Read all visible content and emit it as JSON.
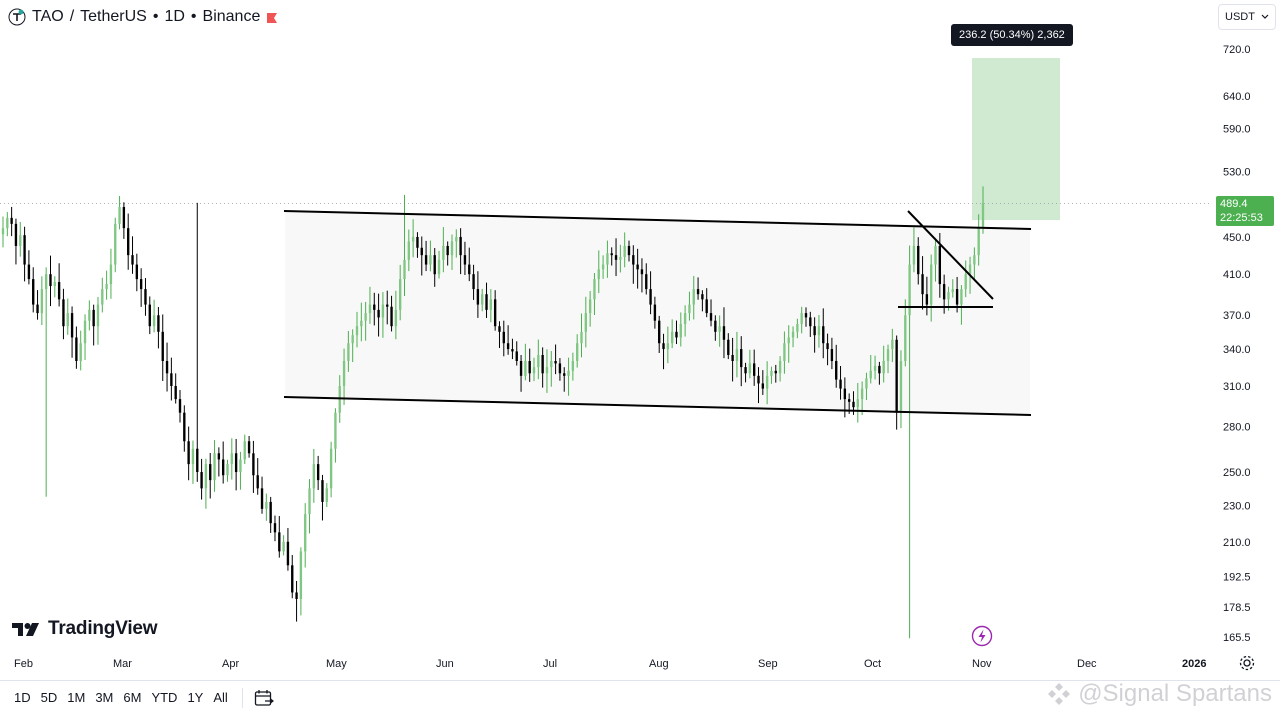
{
  "header": {
    "symbol": "TAO",
    "separator": "/",
    "pair": "TetherUS",
    "interval": "1D",
    "exchange": "Binance",
    "dot": "•"
  },
  "currency": {
    "value": "USDT"
  },
  "price_label": {
    "price": "489.4",
    "countdown": "22:25:53",
    "color": "#4caf50"
  },
  "measure_label": {
    "text": "236.2 (50.34%) 2,362"
  },
  "logo": {
    "text": "TradingView"
  },
  "watermark": {
    "text": "@Signal Spartans"
  },
  "time_ranges": [
    "1D",
    "5D",
    "1M",
    "3M",
    "6M",
    "YTD",
    "1Y",
    "All"
  ],
  "chart_data": {
    "type": "candlestick",
    "scale": "log",
    "y_ticks": [
      165.5,
      178.5,
      192.5,
      210.0,
      230.0,
      250.0,
      280.0,
      310.0,
      340.0,
      370.0,
      410.0,
      450.0,
      530.0,
      590.0,
      640.0,
      720.0
    ],
    "x_ticks": [
      "Feb",
      "Mar",
      "Apr",
      "May",
      "Jun",
      "Jul",
      "Aug",
      "Sep",
      "Oct",
      "Nov",
      "Dec",
      "2026"
    ],
    "colors": {
      "up": "#26a69a",
      "up_light": "#81c784",
      "down": "#000000",
      "target_box": "#c8e6c9"
    },
    "closes": [
      460,
      472,
      465,
      440,
      452,
      420,
      405,
      380,
      372,
      395,
      410,
      398,
      402,
      385,
      360,
      372,
      350,
      330,
      345,
      365,
      375,
      360,
      380,
      395,
      400,
      420,
      465,
      485,
      460,
      430,
      420,
      405,
      395,
      380,
      360,
      370,
      355,
      330,
      320,
      310,
      300,
      290,
      270,
      255,
      265,
      250,
      240,
      255,
      245,
      262,
      258,
      248,
      255,
      262,
      250,
      258,
      270,
      262,
      248,
      240,
      228,
      232,
      220,
      215,
      205,
      210,
      198,
      185,
      182,
      205,
      225,
      240,
      255,
      245,
      232,
      240,
      265,
      290,
      310,
      330,
      345,
      352,
      360,
      365,
      372,
      380,
      375,
      368,
      380,
      378,
      360,
      375,
      405,
      425,
      445,
      450,
      438,
      430,
      420,
      430,
      410,
      425,
      440,
      430,
      445,
      450,
      430,
      420,
      410,
      395,
      380,
      390,
      375,
      385,
      360,
      355,
      345,
      340,
      338,
      330,
      318,
      330,
      320,
      325,
      335,
      320,
      325,
      330,
      328,
      320,
      318,
      322,
      330,
      345,
      355,
      372,
      385,
      405,
      415,
      420,
      432,
      430,
      425,
      428,
      440,
      430,
      420,
      415,
      410,
      395,
      380,
      365,
      345,
      340,
      345,
      355,
      350,
      362,
      372,
      380,
      395,
      390,
      385,
      372,
      365,
      355,
      360,
      348,
      335,
      330,
      340,
      325,
      320,
      328,
      318,
      312,
      308,
      318,
      322,
      320,
      330,
      345,
      350,
      355,
      362,
      372,
      368,
      360,
      352,
      360,
      345,
      340,
      330,
      315,
      308,
      300,
      298,
      294,
      300,
      308,
      316,
      322,
      326,
      320,
      330,
      340,
      348,
      290,
      330,
      370,
      420,
      440,
      410,
      390,
      380,
      420,
      440,
      400,
      385,
      392,
      395,
      380,
      395,
      410,
      420,
      430,
      460,
      489.4
    ]
  }
}
